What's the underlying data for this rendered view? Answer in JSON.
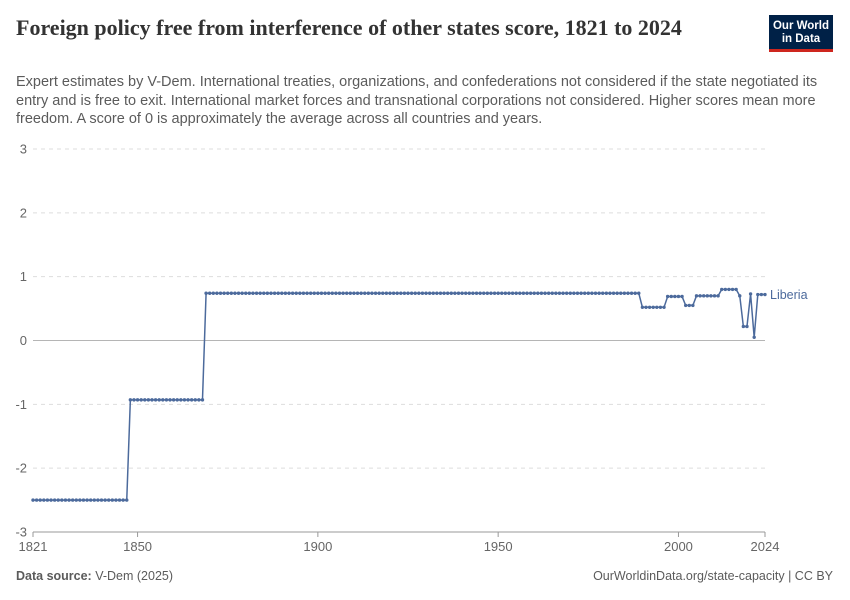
{
  "header": {
    "title": "Foreign policy free from interference of other states score, 1821 to 2024",
    "subtitle": "Expert estimates by V-Dem. International treaties, organizations, and confederations not considered if the state negotiated its entry and is free to exit. International market forces and transnational corporations not considered. Higher scores mean more freedom. A score of 0 is approximately the average across all countries and years.",
    "logo_line1": "Our World",
    "logo_line2": "in Data"
  },
  "footer": {
    "source_label": "Data source:",
    "source_value": "V-Dem (2025)",
    "right_text": "OurWorldinData.org/state-capacity | CC BY"
  },
  "colors": {
    "series": "#4c6a9c",
    "grid": "#dddddd",
    "zero_line": "#b5b5b5",
    "axis_text": "#666666",
    "logo_bg": "#002147",
    "logo_accent": "#ce261e"
  },
  "chart_data": {
    "type": "line",
    "title": "Foreign policy free from interference of other states score, 1821 to 2024",
    "xlabel": "",
    "ylabel": "",
    "xlim": [
      1821,
      2024
    ],
    "ylim": [
      -3,
      3
    ],
    "x_ticks": [
      1821,
      1850,
      1900,
      1950,
      2000,
      2024
    ],
    "y_ticks": [
      -3,
      -2,
      -1,
      0,
      1,
      2,
      3
    ],
    "grid": true,
    "legend": "inline-end-label",
    "series": [
      {
        "name": "Liberia",
        "color": "#4c6a9c",
        "segments": [
          {
            "from": 1821,
            "to": 1847,
            "value": -2.5
          },
          {
            "from": 1848,
            "to": 1868,
            "value": -0.93
          },
          {
            "from": 1869,
            "to": 1989,
            "value": 0.74
          },
          {
            "from": 1990,
            "to": 1996,
            "value": 0.52
          },
          {
            "from": 1997,
            "to": 2001,
            "value": 0.69
          },
          {
            "from": 2002,
            "to": 2004,
            "value": 0.55
          },
          {
            "from": 2005,
            "to": 2011,
            "value": 0.7
          },
          {
            "from": 2012,
            "to": 2016,
            "value": 0.8
          },
          {
            "from": 2017,
            "to": 2017,
            "value": 0.7
          },
          {
            "from": 2018,
            "to": 2019,
            "value": 0.22
          },
          {
            "from": 2020,
            "to": 2020,
            "value": 0.73
          },
          {
            "from": 2021,
            "to": 2021,
            "value": 0.05
          },
          {
            "from": 2022,
            "to": 2024,
            "value": 0.72
          }
        ]
      }
    ]
  }
}
